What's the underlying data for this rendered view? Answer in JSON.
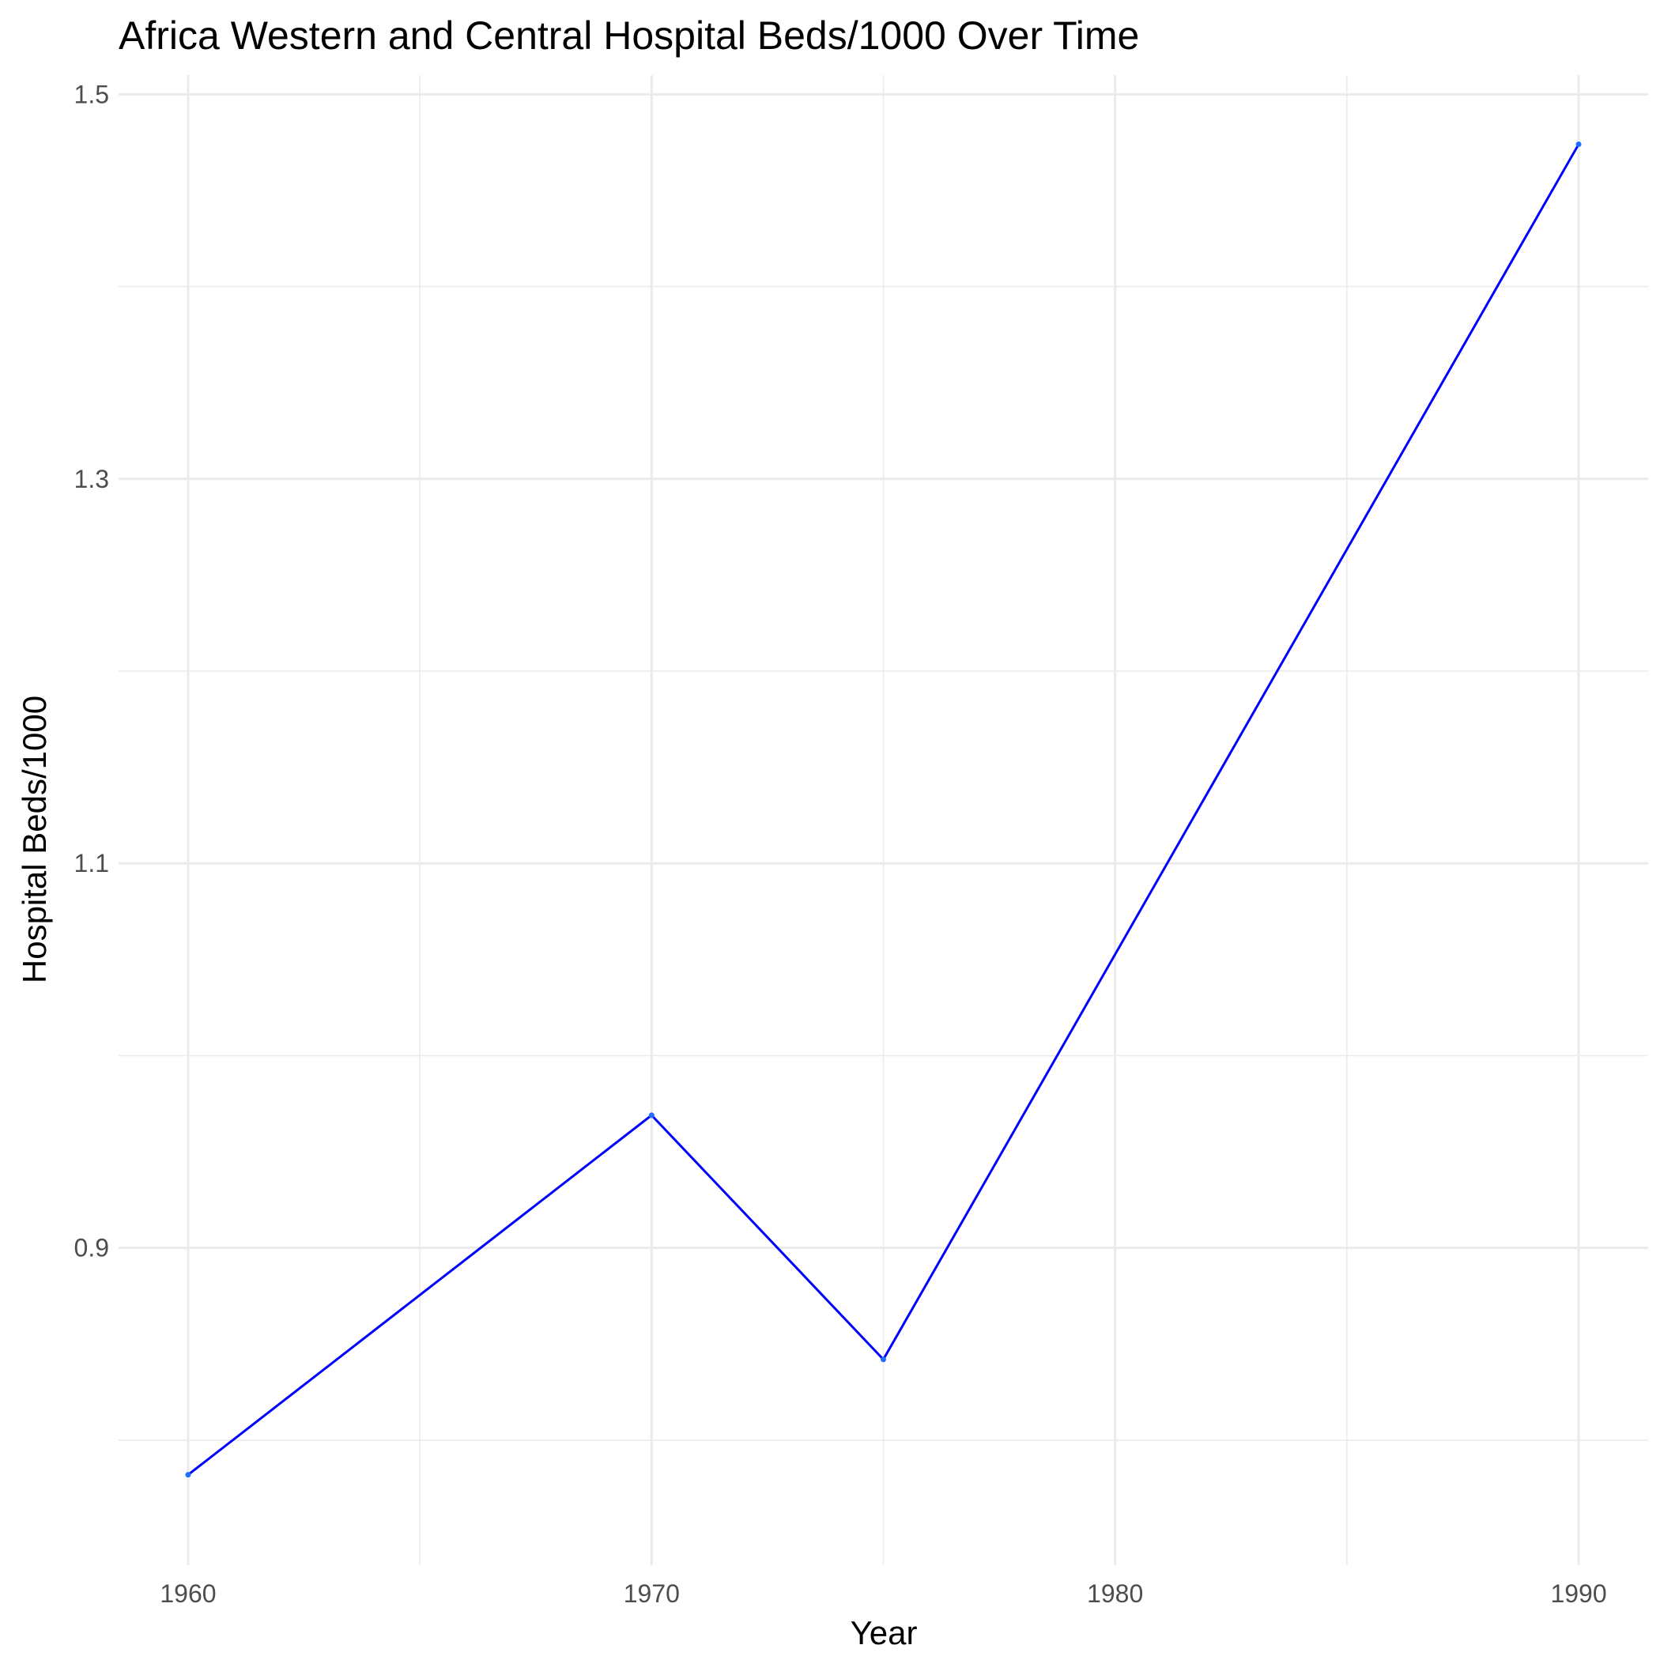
{
  "chart_data": {
    "type": "line",
    "title": "Africa Western and Central Hospital Beds/1000 Over Time",
    "xlabel": "Year",
    "ylabel": "Hospital Beds/1000",
    "x": [
      1960,
      1970,
      1975,
      1990
    ],
    "series": [
      {
        "name": "Hospital Beds/1000",
        "values": [
          0.782,
          0.969,
          0.842,
          1.474
        ],
        "color": "#0000ff"
      }
    ],
    "point_color": "#1e6fff",
    "xlim": [
      1958.5,
      1991.5
    ],
    "ylim": [
      0.735,
      1.51
    ],
    "x_ticks": [
      1960,
      1970,
      1980,
      1990
    ],
    "x_tick_labels": [
      "1960",
      "1970",
      "1980",
      "1990"
    ],
    "x_minor_ticks": [
      1965,
      1975,
      1985
    ],
    "y_ticks": [
      0.9,
      1.1,
      1.3,
      1.5
    ],
    "y_tick_labels": [
      "0.9",
      "1.1",
      "1.3",
      "1.5"
    ],
    "y_minor_ticks": [
      0.8,
      1.0,
      1.2,
      1.4
    ],
    "grid": true,
    "legend": "none",
    "background": "#ffffff"
  }
}
